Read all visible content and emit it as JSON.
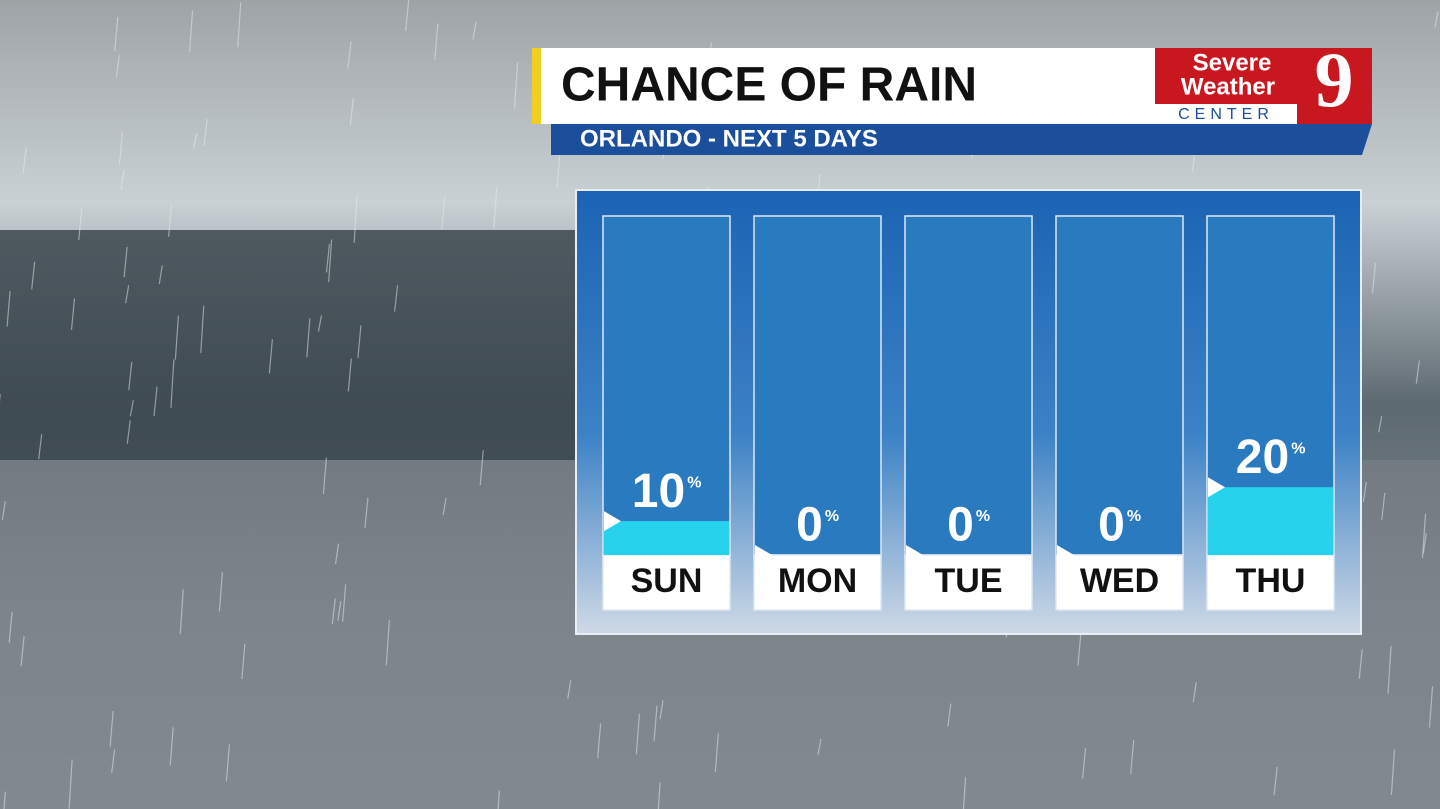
{
  "chart_data": {
    "type": "bar",
    "title": "CHANCE OF RAIN",
    "subtitle": "ORLANDO - NEXT 5 DAYS",
    "logo": {
      "line1": "Severe",
      "line2": "Weather",
      "line3": "CENTER",
      "channel": "9"
    },
    "categories": [
      "SUN",
      "MON",
      "TUE",
      "WED",
      "THU"
    ],
    "values": [
      10,
      0,
      0,
      0,
      20
    ],
    "unit": "%",
    "ylim": [
      0,
      100
    ],
    "color": "#27d3ec"
  }
}
